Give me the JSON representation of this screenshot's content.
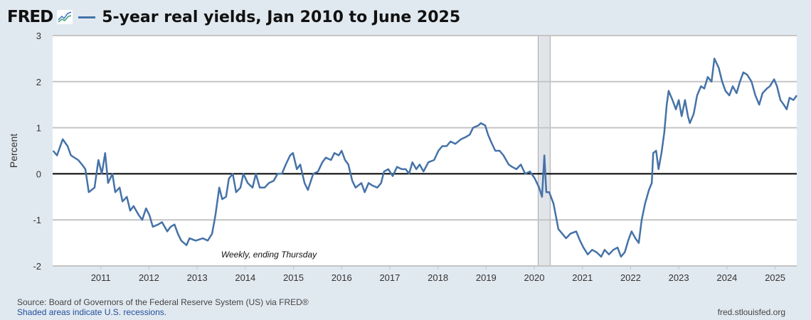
{
  "header": {
    "logo": "FRED",
    "title": "5-year real yields, Jan 2010 to June 2025"
  },
  "footer": {
    "source": "Source: Board of Governors of the Federal Reserve System (US) via FRED®",
    "shaded": "Shaded areas indicate U.S. recessions.",
    "site": "fred.stlouisfed.org"
  },
  "colors": {
    "line": "#4572a7",
    "recession": "#e1e5ea",
    "background": "#e1e9f0"
  },
  "chart_data": {
    "type": "line",
    "title": "5-year real yields, Jan 2010 to June 2025",
    "xlabel": "",
    "ylabel": "Percent",
    "annotation": "Weekly, ending Thursday",
    "xlim": [
      2010.0,
      2025.45
    ],
    "ylim": [
      -2,
      3
    ],
    "yticks": [
      3,
      2,
      1,
      0,
      -1,
      -2
    ],
    "xticks": [
      2011,
      2012,
      2013,
      2014,
      2015,
      2016,
      2017,
      2018,
      2019,
      2020,
      2021,
      2022,
      2023,
      2024,
      2025
    ],
    "grid": true,
    "recessions": [
      [
        2020.08,
        2020.33
      ]
    ],
    "series": [
      {
        "name": "5-year real yields",
        "x": [
          2010.01,
          2010.09,
          2010.21,
          2010.31,
          2010.38,
          2010.53,
          2010.61,
          2010.68,
          2010.75,
          2010.87,
          2010.95,
          2011.02,
          2011.09,
          2011.15,
          2011.24,
          2011.3,
          2011.39,
          2011.45,
          2011.54,
          2011.61,
          2011.68,
          2011.79,
          2011.86,
          2011.94,
          2012.01,
          2012.08,
          2012.19,
          2012.27,
          2012.38,
          2012.45,
          2012.53,
          2012.6,
          2012.67,
          2012.78,
          2012.84,
          2012.97,
          2013.12,
          2013.22,
          2013.31,
          2013.38,
          2013.46,
          2013.52,
          2013.6,
          2013.66,
          2013.74,
          2013.81,
          2013.9,
          2013.96,
          2014.05,
          2014.15,
          2014.22,
          2014.3,
          2014.4,
          2014.49,
          2014.59,
          2014.67,
          2014.76,
          2014.84,
          2014.93,
          2014.99,
          2015.07,
          2015.14,
          2015.23,
          2015.3,
          2015.41,
          2015.51,
          2015.6,
          2015.67,
          2015.78,
          2015.85,
          2015.94,
          2016.0,
          2016.07,
          2016.14,
          2016.22,
          2016.29,
          2016.41,
          2016.48,
          2016.56,
          2016.63,
          2016.74,
          2016.82,
          2016.88,
          2016.97,
          2017.06,
          2017.15,
          2017.25,
          2017.33,
          2017.4,
          2017.47,
          2017.55,
          2017.62,
          2017.7,
          2017.8,
          2017.92,
          2018.01,
          2018.09,
          2018.18,
          2018.26,
          2018.36,
          2018.48,
          2018.58,
          2018.66,
          2018.73,
          2018.84,
          2018.89,
          2018.98,
          2019.04,
          2019.1,
          2019.19,
          2019.28,
          2019.36,
          2019.47,
          2019.54,
          2019.63,
          2019.72,
          2019.81,
          2019.91,
          2020.01,
          2020.1,
          2020.16,
          2020.21,
          2020.25,
          2020.31,
          2020.4,
          2020.5,
          2020.58,
          2020.66,
          2020.75,
          2020.87,
          2020.95,
          2021.02,
          2021.11,
          2021.2,
          2021.29,
          2021.39,
          2021.46,
          2021.55,
          2021.64,
          2021.73,
          2021.8,
          2021.88,
          2021.95,
          2022.02,
          2022.1,
          2022.17,
          2022.23,
          2022.3,
          2022.38,
          2022.44,
          2022.47,
          2022.53,
          2022.58,
          2022.64,
          2022.7,
          2022.75,
          2022.79,
          2022.87,
          2022.94,
          2023.0,
          2023.06,
          2023.13,
          2023.19,
          2023.23,
          2023.31,
          2023.38,
          2023.46,
          2023.53,
          2023.6,
          2023.68,
          2023.74,
          2023.83,
          2023.9,
          2023.97,
          2024.05,
          2024.12,
          2024.2,
          2024.27,
          2024.34,
          2024.42,
          2024.51,
          2024.59,
          2024.67,
          2024.74,
          2024.83,
          2024.89,
          2024.98,
          2025.04,
          2025.11,
          2025.18,
          2025.24,
          2025.3,
          2025.38,
          2025.45
        ],
        "y": [
          0.5,
          0.4,
          0.75,
          0.6,
          0.4,
          0.3,
          0.2,
          0.1,
          -0.4,
          -0.3,
          0.3,
          0.0,
          0.45,
          -0.2,
          0.0,
          -0.4,
          -0.3,
          -0.6,
          -0.5,
          -0.8,
          -0.7,
          -0.9,
          -1.0,
          -0.75,
          -0.9,
          -1.15,
          -1.1,
          -1.05,
          -1.25,
          -1.15,
          -1.1,
          -1.3,
          -1.45,
          -1.55,
          -1.4,
          -1.45,
          -1.4,
          -1.45,
          -1.3,
          -0.9,
          -0.3,
          -0.55,
          -0.5,
          -0.1,
          0.0,
          -0.4,
          -0.3,
          0.0,
          -0.2,
          -0.3,
          0.0,
          -0.3,
          -0.3,
          -0.2,
          -0.15,
          0.0,
          0.0,
          0.2,
          0.4,
          0.45,
          0.1,
          0.2,
          -0.2,
          -0.35,
          0.0,
          0.05,
          0.25,
          0.35,
          0.3,
          0.45,
          0.4,
          0.5,
          0.3,
          0.2,
          -0.15,
          -0.3,
          -0.2,
          -0.4,
          -0.2,
          -0.25,
          -0.3,
          -0.2,
          0.05,
          0.1,
          -0.05,
          0.15,
          0.1,
          0.1,
          0.0,
          0.25,
          0.1,
          0.2,
          0.05,
          0.25,
          0.3,
          0.5,
          0.6,
          0.6,
          0.7,
          0.65,
          0.75,
          0.8,
          0.85,
          1.0,
          1.05,
          1.1,
          1.05,
          0.85,
          0.7,
          0.5,
          0.5,
          0.4,
          0.2,
          0.15,
          0.1,
          0.2,
          0.0,
          0.05,
          -0.1,
          -0.3,
          -0.5,
          0.4,
          -0.4,
          -0.4,
          -0.65,
          -1.2,
          -1.3,
          -1.4,
          -1.3,
          -1.25,
          -1.45,
          -1.6,
          -1.75,
          -1.65,
          -1.7,
          -1.8,
          -1.65,
          -1.75,
          -1.65,
          -1.6,
          -1.8,
          -1.7,
          -1.45,
          -1.25,
          -1.4,
          -1.5,
          -1.0,
          -0.65,
          -0.35,
          -0.2,
          0.45,
          0.5,
          0.1,
          0.45,
          0.9,
          1.5,
          1.8,
          1.6,
          1.4,
          1.6,
          1.25,
          1.6,
          1.25,
          1.1,
          1.3,
          1.7,
          1.9,
          1.85,
          2.1,
          2.0,
          2.5,
          2.3,
          2.0,
          1.8,
          1.7,
          1.9,
          1.75,
          2.0,
          2.2,
          2.15,
          2.0,
          1.7,
          1.5,
          1.75,
          1.85,
          1.9,
          2.05,
          1.9,
          1.6,
          1.5,
          1.4,
          1.65,
          1.6,
          1.7
        ]
      }
    ]
  }
}
